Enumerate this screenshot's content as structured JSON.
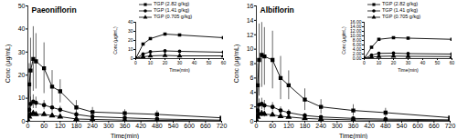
{
  "chart_data": [
    {
      "type": "line",
      "title": "Paeoniflorin",
      "x_label": "Time(min)",
      "y_label": "Conc (μg/mL)",
      "x": [
        0,
        5,
        10,
        20,
        30,
        60,
        90,
        120,
        180,
        240,
        360,
        480,
        720
      ],
      "xlim": [
        0,
        720
      ],
      "xticks": [
        0,
        60,
        120,
        180,
        240,
        300,
        360,
        420,
        480,
        540,
        600,
        660,
        720
      ],
      "ylim": [
        0,
        50
      ],
      "yticks": [
        0,
        10,
        20,
        30,
        40,
        50
      ],
      "grid": false,
      "series": [
        {
          "name": "TGP (2.82 g/kg)",
          "color": "#000000",
          "marker": "square",
          "values": [
            0,
            16,
            22,
            27,
            26,
            23,
            15,
            13,
            6,
            4,
            3.5,
            3,
            1.5
          ],
          "errors": [
            0,
            9,
            14,
            14,
            12,
            11,
            7,
            5,
            3,
            2,
            1.5,
            1.5,
            1
          ]
        },
        {
          "name": "TGP (1.41 g/kg)",
          "color": "#000000",
          "marker": "circle",
          "values": [
            0,
            5,
            7.5,
            8.5,
            8,
            7,
            6,
            5,
            3,
            2,
            1.5,
            1,
            0.5
          ],
          "errors": [
            0,
            2,
            3,
            3,
            2.5,
            2,
            2,
            1.5,
            1,
            0.8,
            0.5,
            0.4,
            0.2
          ]
        },
        {
          "name": "TGP (0.705 g/kg)",
          "color": "#000000",
          "marker": "triangle",
          "values": [
            0,
            2,
            3,
            3.5,
            3,
            3,
            2.5,
            2,
            1,
            0.8,
            0.5,
            0.4,
            0.2
          ],
          "errors": [
            0,
            1,
            1,
            1,
            1,
            1,
            0.8,
            0.6,
            0.4,
            0.3,
            0.2,
            0.2,
            0.1
          ]
        }
      ]
    },
    {
      "type": "line",
      "x_label": "Time(min)",
      "y_label": "Conc (μg/mL)",
      "x": [
        0,
        5,
        10,
        20,
        30,
        60
      ],
      "xlim": [
        0,
        60
      ],
      "xticks": [
        0,
        10,
        20,
        30,
        40,
        50,
        60
      ],
      "ylim": [
        0,
        40
      ],
      "yticks": [
        0,
        10,
        20,
        30,
        40
      ],
      "grid": false,
      "legend": "top-left",
      "series": [
        {
          "name": "TGP (2.82 g/kg)",
          "color": "#000000",
          "marker": "square",
          "values": [
            0,
            16,
            22,
            27,
            26,
            23
          ]
        },
        {
          "name": "TGP (1.41 g/kg)",
          "color": "#000000",
          "marker": "circle",
          "values": [
            0,
            5,
            7.5,
            8.5,
            8,
            7
          ]
        },
        {
          "name": "TGP (0.705 g/kg)",
          "color": "#000000",
          "marker": "triangle",
          "values": [
            0,
            2,
            3,
            3.5,
            3,
            3
          ]
        }
      ]
    },
    {
      "type": "line",
      "title": "Albiflorin",
      "x_label": "Time(min)",
      "y_label": "Conc (μg/mL)",
      "x": [
        0,
        5,
        10,
        20,
        30,
        60,
        90,
        120,
        180,
        240,
        360,
        480,
        720
      ],
      "xlim": [
        0,
        720
      ],
      "xticks": [
        0,
        60,
        120,
        180,
        240,
        300,
        360,
        420,
        480,
        540,
        600,
        660,
        720
      ],
      "ylim": [
        0,
        16
      ],
      "yticks": [
        0,
        2,
        4,
        6,
        8,
        10,
        12,
        14,
        16
      ],
      "grid": false,
      "series": [
        {
          "name": "TGP (2.82 g/kg)",
          "color": "#000000",
          "marker": "square",
          "values": [
            0,
            5,
            8.5,
            9.2,
            9,
            8.5,
            6,
            5,
            3,
            2,
            1.5,
            1.2,
            0.5
          ],
          "errors": [
            0,
            3,
            5,
            4.5,
            4,
            4,
            3,
            2,
            1.5,
            1,
            0.8,
            0.6,
            0.3
          ]
        },
        {
          "name": "TGP (1.41 g/kg)",
          "color": "#000000",
          "marker": "circle",
          "values": [
            0,
            1.5,
            2.3,
            2.4,
            2.2,
            2,
            1.5,
            1.2,
            0.8,
            0.6,
            0.4,
            0.3,
            0.2
          ],
          "errors": [
            0,
            0.6,
            0.8,
            0.8,
            0.7,
            0.6,
            0.5,
            0.4,
            0.3,
            0.2,
            0.2,
            0.1,
            0.1
          ]
        },
        {
          "name": "TGP (0.705 g/kg)",
          "color": "#000000",
          "marker": "triangle",
          "values": [
            0,
            0.6,
            1,
            1.1,
            1,
            0.9,
            0.7,
            0.6,
            0.4,
            0.3,
            0.2,
            0.15,
            0.1
          ],
          "errors": [
            0,
            0.3,
            0.4,
            0.4,
            0.4,
            0.3,
            0.3,
            0.2,
            0.2,
            0.1,
            0.1,
            0.1,
            0.05
          ]
        }
      ]
    },
    {
      "type": "line",
      "x_label": "Time(min)",
      "y_label": "Conc (μg/mL)",
      "x": [
        0,
        5,
        10,
        20,
        30,
        60
      ],
      "xlim": [
        0,
        60
      ],
      "xticks": [
        0,
        10,
        20,
        30,
        40,
        50,
        60
      ],
      "ylim": [
        0,
        16
      ],
      "yticks": [
        {
          "value": 0,
          "label": "0.00"
        },
        {
          "value": 2,
          "label": "2.00"
        },
        {
          "value": 4,
          "label": "4.00"
        },
        {
          "value": 6,
          "label": "6.00"
        },
        {
          "value": 8,
          "label": "8.00"
        },
        {
          "value": 10,
          "label": "10.00"
        },
        {
          "value": 12,
          "label": "12.00"
        },
        {
          "value": 14,
          "label": "14.00"
        },
        {
          "value": 16,
          "label": "16.00"
        }
      ],
      "grid": false,
      "legend": "top-left",
      "series": [
        {
          "name": "TGP (2.82 g/kg)",
          "color": "#000000",
          "marker": "square",
          "values": [
            0,
            5,
            8.5,
            9.2,
            9,
            8.5
          ]
        },
        {
          "name": "TGP (1.41 g/kg)",
          "color": "#000000",
          "marker": "circle",
          "values": [
            0,
            1.5,
            2.3,
            2.4,
            2.2,
            2
          ]
        },
        {
          "name": "TGP (0.705 g/kg)",
          "color": "#000000",
          "marker": "triangle",
          "values": [
            0,
            0.6,
            1,
            1.1,
            1,
            0.9
          ]
        }
      ]
    }
  ]
}
